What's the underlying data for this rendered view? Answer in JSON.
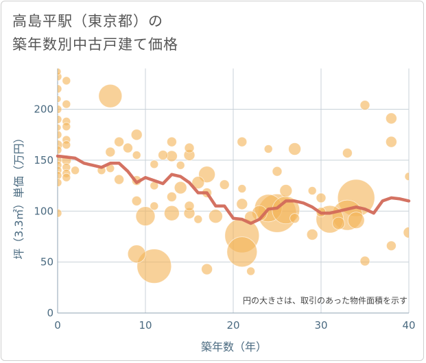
{
  "title": {
    "line1": "高島平駅（東京都）の",
    "line2": "築年数別中古戸建て価格"
  },
  "colors": {
    "bubble": "#f4b55a",
    "line": "#d26a5a",
    "grid": "#c8d1d8",
    "tick": "#4a6a80"
  },
  "chart_data": {
    "type": "scatter",
    "xlabel": "築年数（年）",
    "ylabel": "坪（3.3㎡）単価（万円）",
    "xlim": [
      0,
      40
    ],
    "ylim": [
      0,
      240
    ],
    "xticks": [
      0,
      10,
      20,
      30,
      40
    ],
    "yticks": [
      0,
      50,
      100,
      150,
      200
    ],
    "grid": true,
    "note": "円の大きさは、取引のあった物件面積を示す",
    "series": [
      {
        "kind": "bubble",
        "points": [
          [
            0,
            237,
            5
          ],
          [
            0,
            232,
            6
          ],
          [
            0,
            220,
            6
          ],
          [
            0,
            210,
            5
          ],
          [
            0,
            200,
            6
          ],
          [
            0,
            190,
            6
          ],
          [
            0,
            182,
            5
          ],
          [
            0,
            175,
            6
          ],
          [
            0,
            165,
            7
          ],
          [
            0,
            160,
            6
          ],
          [
            0,
            150,
            6
          ],
          [
            0,
            145,
            6
          ],
          [
            0,
            140,
            6
          ],
          [
            0,
            135,
            6
          ],
          [
            0,
            128,
            6
          ],
          [
            0,
            98,
            6
          ],
          [
            1,
            228,
            6
          ],
          [
            1,
            205,
            6
          ],
          [
            1,
            188,
            6
          ],
          [
            1,
            183,
            6
          ],
          [
            1,
            170,
            6
          ],
          [
            1,
            165,
            6
          ],
          [
            1,
            150,
            7
          ],
          [
            1,
            143,
            6
          ],
          [
            1,
            137,
            6
          ],
          [
            1,
            133,
            6
          ],
          [
            2,
            140,
            6
          ],
          [
            5,
            140,
            6
          ],
          [
            6,
            213,
            17
          ],
          [
            6,
            158,
            7
          ],
          [
            6,
            142,
            6
          ],
          [
            7,
            168,
            7
          ],
          [
            7,
            131,
            7
          ],
          [
            8,
            162,
            7
          ],
          [
            9,
            175,
            8
          ],
          [
            9,
            155,
            6
          ],
          [
            9,
            130,
            7
          ],
          [
            9,
            110,
            7
          ],
          [
            9,
            58,
            13
          ],
          [
            10,
            95,
            14
          ],
          [
            11,
            146,
            6
          ],
          [
            11,
            125,
            6
          ],
          [
            11,
            105,
            6
          ],
          [
            11,
            46,
            25
          ],
          [
            12,
            155,
            7
          ],
          [
            13,
            168,
            7
          ],
          [
            13,
            154,
            8
          ],
          [
            13,
            114,
            7
          ],
          [
            13,
            98,
            11
          ],
          [
            14,
            145,
            6
          ],
          [
            14,
            123,
            9
          ],
          [
            15,
            162,
            7
          ],
          [
            15,
            155,
            8
          ],
          [
            15,
            105,
            7
          ],
          [
            15,
            98,
            8
          ],
          [
            16,
            92,
            6
          ],
          [
            16,
            128,
            9
          ],
          [
            17,
            136,
            12
          ],
          [
            17,
            118,
            7
          ],
          [
            17,
            43,
            8
          ],
          [
            18,
            95,
            10
          ],
          [
            19,
            126,
            7
          ],
          [
            21,
            168,
            7
          ],
          [
            21,
            122,
            6
          ],
          [
            21,
            107,
            8
          ],
          [
            21,
            76,
            25
          ],
          [
            21,
            60,
            22
          ],
          [
            22,
            41,
            6
          ],
          [
            22,
            94,
            9
          ],
          [
            23,
            98,
            11
          ],
          [
            24,
            161,
            6
          ],
          [
            24,
            103,
            20
          ],
          [
            25,
            98,
            28
          ],
          [
            25,
            139,
            7
          ],
          [
            26,
            120,
            9
          ],
          [
            26,
            101,
            20
          ],
          [
            27,
            161,
            9
          ],
          [
            27,
            93,
            7
          ],
          [
            29,
            120,
            6
          ],
          [
            29,
            77,
            8
          ],
          [
            30,
            113,
            7
          ],
          [
            30,
            99,
            7
          ],
          [
            31,
            92,
            20
          ],
          [
            32,
            88,
            9
          ],
          [
            33,
            157,
            7
          ],
          [
            33,
            96,
            22
          ],
          [
            34,
            113,
            27
          ],
          [
            34,
            91,
            12
          ],
          [
            35,
            204,
            7
          ],
          [
            35,
            51,
            7
          ],
          [
            38,
            191,
            8
          ],
          [
            38,
            168,
            8
          ],
          [
            38,
            66,
            7
          ],
          [
            40,
            134,
            6
          ],
          [
            40,
            79,
            8
          ]
        ]
      },
      {
        "kind": "line",
        "points": [
          [
            0,
            154
          ],
          [
            1,
            153
          ],
          [
            2,
            152
          ],
          [
            3,
            147
          ],
          [
            4,
            145
          ],
          [
            5,
            143
          ],
          [
            6,
            147
          ],
          [
            7,
            147
          ],
          [
            8,
            139
          ],
          [
            9,
            128
          ],
          [
            10,
            133
          ],
          [
            11,
            130
          ],
          [
            12,
            127
          ],
          [
            13,
            136
          ],
          [
            14,
            134
          ],
          [
            15,
            128
          ],
          [
            16,
            118
          ],
          [
            17,
            118
          ],
          [
            18,
            105
          ],
          [
            19,
            105
          ],
          [
            20,
            93
          ],
          [
            21,
            92
          ],
          [
            22,
            88
          ],
          [
            23,
            92
          ],
          [
            24,
            102
          ],
          [
            25,
            103
          ],
          [
            26,
            110
          ],
          [
            27,
            110
          ],
          [
            28,
            108
          ],
          [
            29,
            104
          ],
          [
            30,
            98
          ],
          [
            31,
            98
          ],
          [
            32,
            100
          ],
          [
            33,
            102
          ],
          [
            34,
            104
          ],
          [
            35,
            102
          ],
          [
            36,
            98
          ],
          [
            37,
            110
          ],
          [
            38,
            113
          ],
          [
            39,
            112
          ],
          [
            40,
            110
          ]
        ]
      }
    ]
  }
}
